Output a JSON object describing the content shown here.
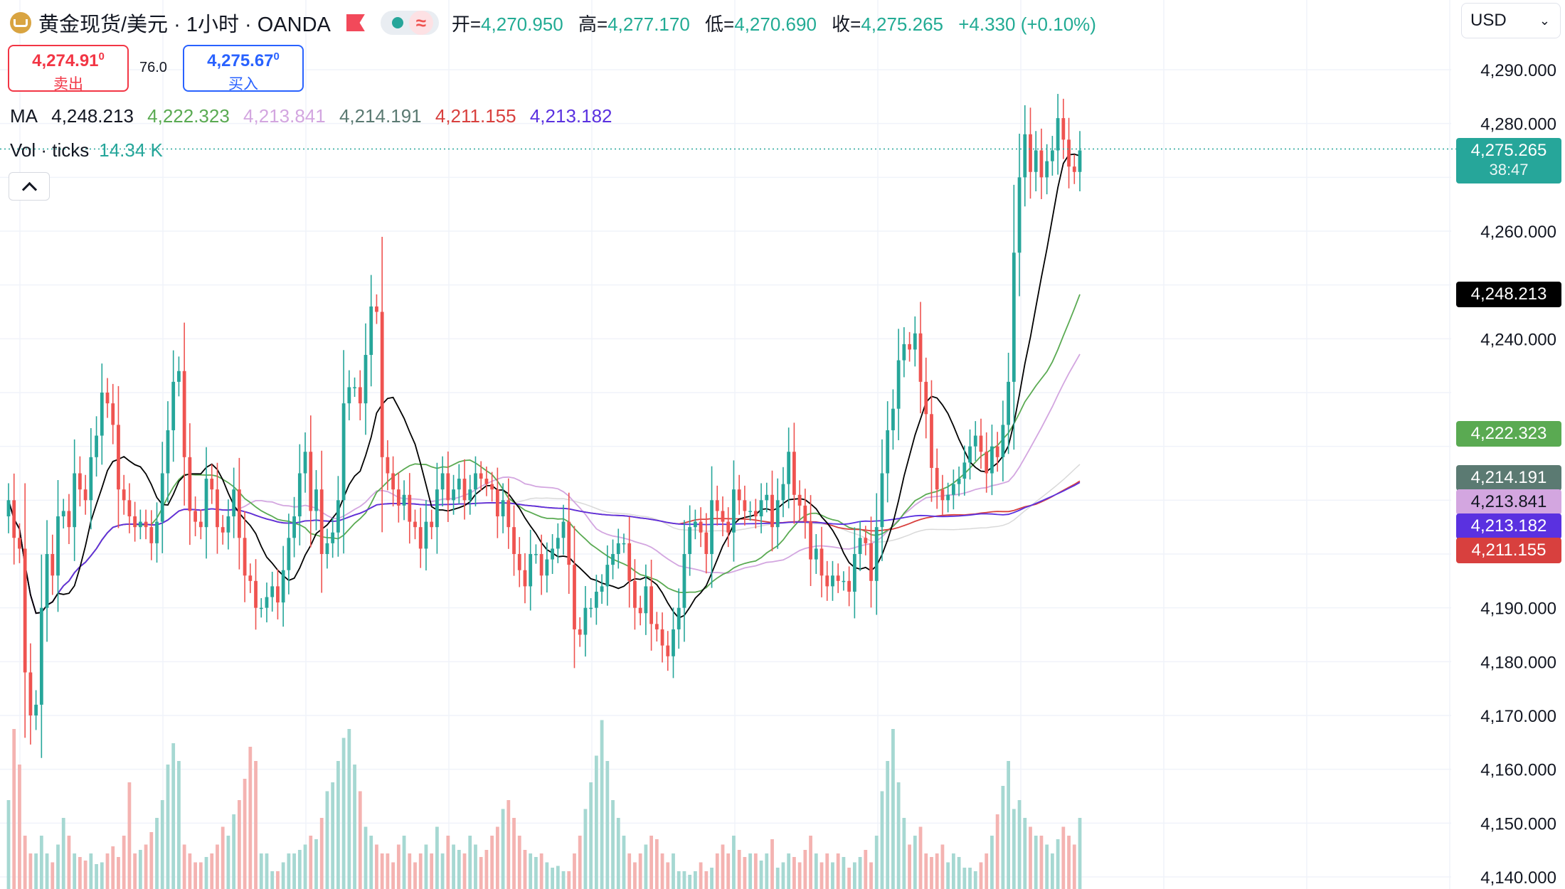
{
  "header": {
    "symbol": "黄金现货/美元 · 1小时 · OANDA",
    "open_label": "开=",
    "open": "4,270.950",
    "high_label": "高=",
    "high": "4,277.170",
    "low_label": "低=",
    "low": "4,270.690",
    "close_label": "收=",
    "close": "4,275.265",
    "change": "+4.330 (+0.10%)",
    "wave_glyph": "≈",
    "currency": "USD"
  },
  "trade": {
    "sell_price": "4,274.91",
    "sell_sup": "0",
    "sell_label": "卖出",
    "buy_price": "4,275.67",
    "buy_sup": "0",
    "buy_label": "买入",
    "spread": "76.0"
  },
  "ma_row": {
    "label": "MA",
    "values": [
      "4,248.213",
      "4,222.323",
      "4,213.841",
      "4,214.191",
      "4,211.155",
      "4,213.182"
    ]
  },
  "vol_row": {
    "label": "Vol · ticks",
    "value": "14.34 K"
  },
  "current_tag": {
    "price": "4,275.265",
    "countdown": "38:47"
  },
  "ma_tags": [
    {
      "text": "4,248.213",
      "value": 4248.213,
      "color": "#000000"
    },
    {
      "text": "4,222.323",
      "value": 4222.323,
      "color": "#5aaa52"
    },
    {
      "text": "4,214.191",
      "value": 4214.191,
      "color": "#5b7a72"
    },
    {
      "text": "4,213.841",
      "value": 4213.841,
      "color": "#d3a6e0"
    },
    {
      "text": "4,213.182",
      "value": 4213.182,
      "color": "#5a31e0"
    },
    {
      "text": "4,211.155",
      "value": 4211.155,
      "color": "#d8403e"
    }
  ],
  "colors": {
    "up": "#26a69a",
    "down": "#ef5350",
    "vol_up": "#a6d8d2",
    "vol_down": "#f4b3b1",
    "ma_colors": [
      "#000000",
      "#5aaa52",
      "#d3a6e0",
      "#5b7a72",
      "#d8403e",
      "#5a31e0"
    ],
    "ma_ghost": "#d9d9d9",
    "grid": "#f0f3fa",
    "axis_text": "#131722"
  },
  "chart_data": {
    "type": "candlestick",
    "title": "黄金现货/美元 · 1小时 · OANDA",
    "ylim": [
      4140,
      4290
    ],
    "y_ticks": [
      4140,
      4150,
      4160,
      4170,
      4180,
      4190,
      4240,
      4260,
      4280,
      4290
    ],
    "y_tick_labels": [
      "4,140.000",
      "4,150.000",
      "4,160.000",
      "4,170.000",
      "4,180.000",
      "4,190.000",
      "4,240.000",
      "4,260.000",
      "4,280.000",
      "4,290.000"
    ],
    "last_price": 4275.265,
    "series_close": [
      4210,
      4203,
      4201,
      4178,
      4170,
      4172,
      4190,
      4200,
      4196,
      4207,
      4208,
      4205,
      4215,
      4212,
      4210,
      4218,
      4222,
      4230,
      4228,
      4224,
      4212,
      4210,
      4207,
      4205,
      4206,
      4205,
      4202,
      4206,
      4215,
      4223,
      4232,
      4234,
      4218,
      4208,
      4206,
      4205,
      4214,
      4212,
      4205,
      4204,
      4207,
      4212,
      4203,
      4196,
      4195,
      4190,
      4190,
      4192,
      4194,
      4191,
      4197,
      4203,
      4207,
      4215,
      4219,
      4208,
      4212,
      4200,
      4202,
      4204,
      4210,
      4228,
      4231,
      4231,
      4228,
      4237,
      4246,
      4245,
      4218,
      4215,
      4212,
      4209,
      4211,
      4206,
      4205,
      4201,
      4206,
      4205,
      4212,
      4215,
      4210,
      4212,
      4214,
      4210,
      4212,
      4215,
      4214,
      4213,
      4212,
      4207,
      4210,
      4205,
      4200,
      4197,
      4194,
      4200,
      4200,
      4196,
      4199,
      4201,
      4203,
      4206,
      4198,
      4186,
      4185,
      4190,
      4190,
      4193,
      4194,
      4198,
      4200,
      4202,
      4202,
      4195,
      4190,
      4189,
      4194,
      4187,
      4186,
      4183,
      4181,
      4186,
      4190,
      4200,
      4205,
      4206,
      4204,
      4200,
      4210,
      4208,
      4206,
      4204,
      4212,
      4210,
      4208,
      4208,
      4207,
      4210,
      4211,
      4205,
      4210,
      4213,
      4219,
      4211,
      4209,
      4206,
      4199,
      4201,
      4196,
      4194,
      4196,
      4195,
      4195,
      4193,
      4200,
      4203,
      4202,
      4195,
      4205,
      4215,
      4223,
      4227,
      4236,
      4239,
      4238,
      4241,
      4232,
      4226,
      4216,
      4212,
      4210,
      4211,
      4213,
      4214,
      4217,
      4220,
      4222,
      4219,
      4215,
      4220,
      4218,
      4224,
      4232,
      4256,
      4270,
      4278,
      4271,
      4275,
      4270,
      4273,
      4275,
      4281,
      4277,
      4272,
      4271,
      4275
    ],
    "series_volume_relative": [
      0.5,
      0.9,
      0.7,
      0.3,
      0.2,
      0.2,
      0.3,
      0.2,
      0.15,
      0.25,
      0.4,
      0.3,
      0.2,
      0.18,
      0.16,
      0.2,
      0.14,
      0.15,
      0.2,
      0.24,
      0.18,
      0.3,
      0.6,
      0.2,
      0.22,
      0.25,
      0.32,
      0.4,
      0.5,
      0.7,
      0.82,
      0.72,
      0.25,
      0.2,
      0.15,
      0.15,
      0.18,
      0.2,
      0.25,
      0.35,
      0.3,
      0.42,
      0.5,
      0.62,
      0.8,
      0.72,
      0.2,
      0.2,
      0.1,
      0.1,
      0.15,
      0.2,
      0.2,
      0.22,
      0.25,
      0.3,
      0.28,
      0.4,
      0.55,
      0.6,
      0.72,
      0.85,
      0.9,
      0.7,
      0.55,
      0.35,
      0.3,
      0.25,
      0.2,
      0.2,
      0.15,
      0.25,
      0.3,
      0.2,
      0.15,
      0.2,
      0.25,
      0.2,
      0.35,
      0.2,
      0.3,
      0.25,
      0.22,
      0.2,
      0.3,
      0.25,
      0.18,
      0.22,
      0.3,
      0.35,
      0.45,
      0.5,
      0.4,
      0.3,
      0.22,
      0.2,
      0.18,
      0.2,
      0.15,
      0.12,
      0.13,
      0.1,
      0.1,
      0.2,
      0.3,
      0.45,
      0.6,
      0.75,
      0.95,
      0.72,
      0.5,
      0.4,
      0.3,
      0.2,
      0.15,
      0.2,
      0.25,
      0.3,
      0.28,
      0.2,
      0.15,
      0.2,
      0.1,
      0.1,
      0.08,
      0.1,
      0.15,
      0.1,
      0.12,
      0.2,
      0.25,
      0.2,
      0.3,
      0.22,
      0.18,
      0.2,
      0.2,
      0.16,
      0.2,
      0.28,
      0.12,
      0.15,
      0.2,
      0.18,
      0.15,
      0.22,
      0.3,
      0.2,
      0.15,
      0.2,
      0.15,
      0.2,
      0.18,
      0.12,
      0.15,
      0.18,
      0.22,
      0.15,
      0.3,
      0.55,
      0.72,
      0.9,
      0.6,
      0.4,
      0.25,
      0.3,
      0.35,
      0.2,
      0.18,
      0.2,
      0.25,
      0.15,
      0.2,
      0.18,
      0.12,
      0.12,
      0.1,
      0.15,
      0.2,
      0.3,
      0.42,
      0.58,
      0.72,
      0.45,
      0.5,
      0.4,
      0.35,
      0.3,
      0.3,
      0.25,
      0.2,
      0.28,
      0.35,
      0.3,
      0.25,
      0.4
    ],
    "volume_max_label": "14.34 K"
  }
}
